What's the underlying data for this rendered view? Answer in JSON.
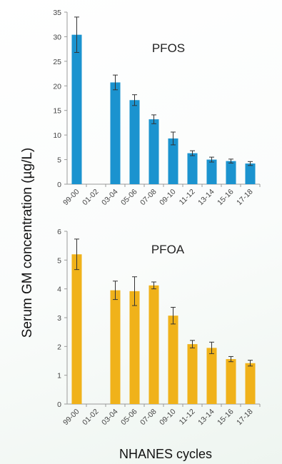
{
  "ylabel": "Serum GM  concentration (µg/L)",
  "xlabel": "NHANES cycles",
  "chart_data": [
    {
      "type": "bar",
      "title": "PFOS",
      "categories": [
        "99-00",
        "01-02",
        "03-04",
        "05-06",
        "07-08",
        "09-10",
        "11-12",
        "13-14",
        "15-16",
        "17-18"
      ],
      "values": [
        30.4,
        null,
        20.7,
        17.1,
        13.2,
        9.3,
        6.3,
        5.0,
        4.7,
        4.2
      ],
      "errors": [
        3.6,
        null,
        1.5,
        1.1,
        0.9,
        1.3,
        0.5,
        0.5,
        0.4,
        0.4
      ],
      "ylim": [
        0,
        35
      ],
      "yticks": [
        0,
        5,
        10,
        15,
        20,
        25,
        30,
        35
      ],
      "color": "#1b93cf",
      "grid": false
    },
    {
      "type": "bar",
      "title": "PFOA",
      "categories": [
        "99-00",
        "01-02",
        "03-04",
        "05-06",
        "07-08",
        "09-10",
        "11-12",
        "13-14",
        "15-16",
        "17-18"
      ],
      "values": [
        5.2,
        null,
        3.95,
        3.92,
        4.12,
        3.07,
        2.08,
        1.95,
        1.56,
        1.42
      ],
      "errors": [
        0.53,
        null,
        0.32,
        0.5,
        0.12,
        0.29,
        0.13,
        0.2,
        0.09,
        0.1
      ],
      "ylim": [
        0,
        6
      ],
      "yticks": [
        0,
        1,
        2,
        3,
        4,
        5,
        6
      ],
      "color": "#f0b21a",
      "grid": false
    }
  ]
}
